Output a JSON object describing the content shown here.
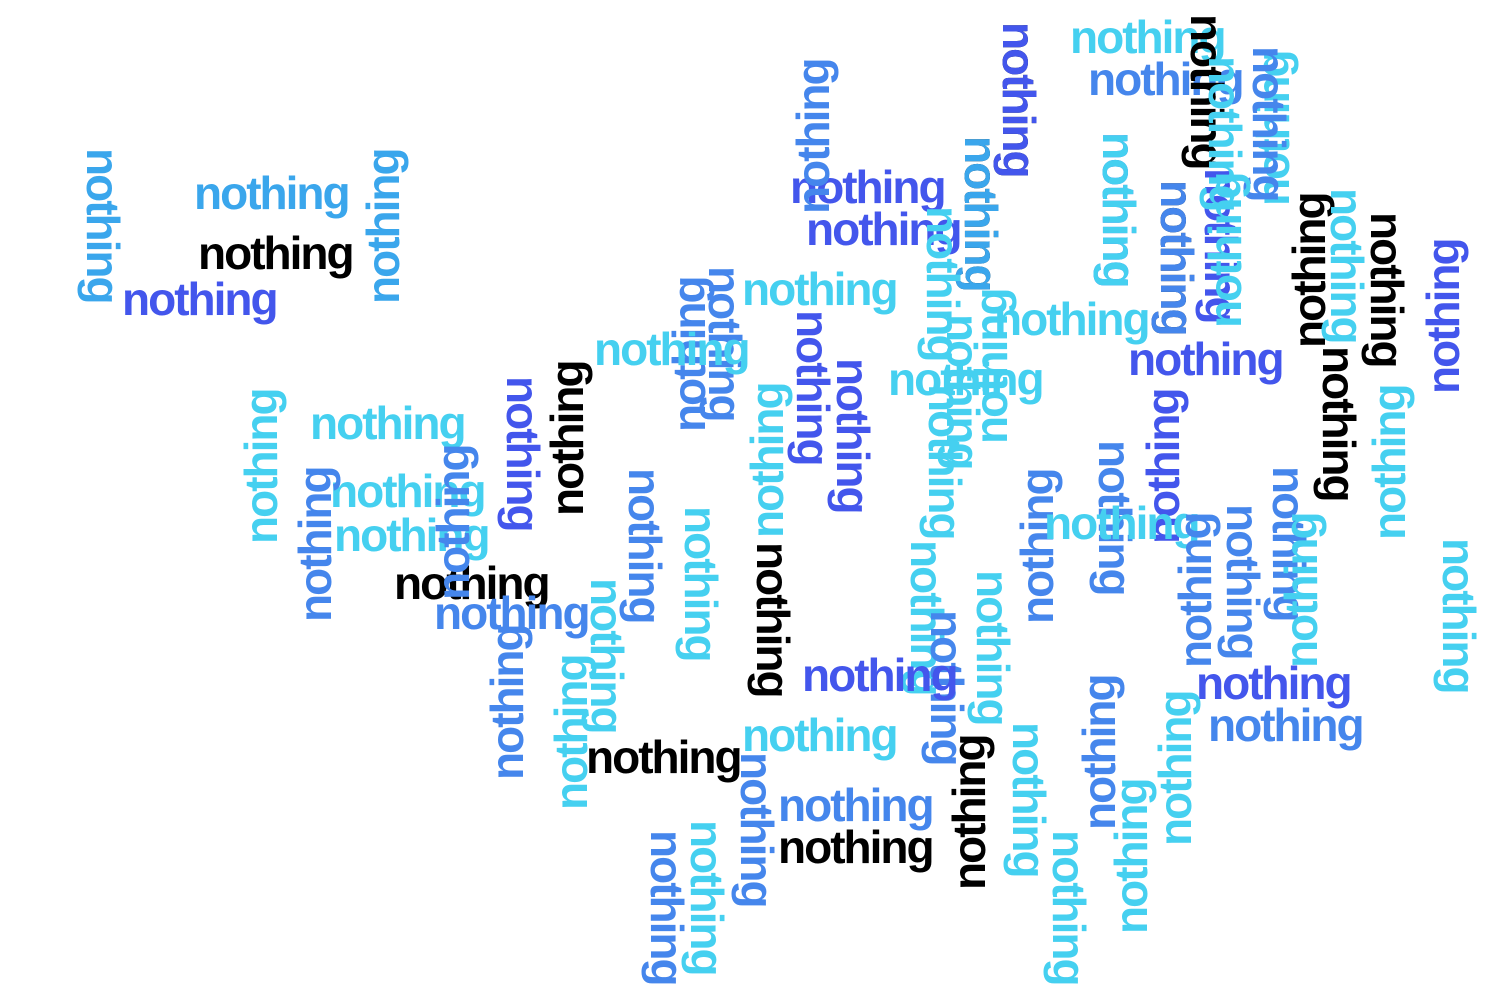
{
  "word_cloud": {
    "words": [
      {
        "text": "nothing",
        "color": "sky",
        "orientation": "horizontal"
      },
      {
        "text": "nothing",
        "color": "blue",
        "orientation": "horizontal"
      },
      {
        "text": "nothing",
        "color": "black",
        "orientation": "rotated-cw"
      },
      {
        "text": "nothing",
        "color": "black",
        "orientation": "rotated-cw"
      },
      {
        "text": "nothing",
        "color": "sky",
        "orientation": "rotated-ccw"
      },
      {
        "text": "nothing",
        "color": "indigo",
        "orientation": "horizontal"
      },
      {
        "text": "nothing",
        "color": "indigo",
        "orientation": "horizontal"
      },
      {
        "text": "nothing",
        "color": "indigo",
        "orientation": "rotated-cw"
      },
      {
        "text": "nothing",
        "color": "black",
        "orientation": "rotated-cw"
      },
      {
        "text": "nothing",
        "color": "indigo",
        "orientation": "rotated-cw"
      },
      {
        "text": "nothing",
        "color": "black",
        "orientation": "rotated-ccw"
      },
      {
        "text": "nothing",
        "color": "sky",
        "orientation": "rotated-cw"
      },
      {
        "text": "nothing",
        "color": "black",
        "orientation": "rotated-cw"
      },
      {
        "text": "nothing",
        "color": "indigo",
        "orientation": "rotated-ccw"
      },
      {
        "text": "nothing",
        "color": "azure",
        "orientation": "rotated-cw"
      },
      {
        "text": "nothing",
        "color": "azure",
        "orientation": "horizontal"
      },
      {
        "text": "nothing",
        "color": "azure",
        "orientation": "rotated-ccw"
      },
      {
        "text": "nothing",
        "color": "black",
        "orientation": "horizontal"
      },
      {
        "text": "nothing",
        "color": "indigo",
        "orientation": "horizontal"
      },
      {
        "text": "nothing",
        "color": "sky",
        "orientation": "horizontal"
      },
      {
        "text": "nothing",
        "color": "indigo",
        "orientation": "horizontal"
      },
      {
        "text": "nothing",
        "color": "sky",
        "orientation": "horizontal"
      },
      {
        "text": "nothing",
        "color": "blue",
        "orientation": "rotated-ccw"
      },
      {
        "text": "nothing",
        "color": "blue",
        "orientation": "rotated-cw"
      },
      {
        "text": "nothing",
        "color": "indigo",
        "orientation": "rotated-cw"
      },
      {
        "text": "nothing",
        "color": "sky",
        "orientation": "rotated-cw"
      },
      {
        "text": "nothing",
        "color": "sky",
        "orientation": "rotated-ccw"
      },
      {
        "text": "nothing",
        "color": "indigo",
        "orientation": "rotated-cw"
      },
      {
        "text": "nothing",
        "color": "sky",
        "orientation": "horizontal"
      },
      {
        "text": "nothing",
        "color": "sky",
        "orientation": "rotated-cw"
      },
      {
        "text": "nothing",
        "color": "sky",
        "orientation": "rotated-ccw"
      },
      {
        "text": "nothing",
        "color": "indigo",
        "orientation": "rotated-ccw"
      },
      {
        "text": "nothing",
        "color": "black",
        "orientation": "rotated-cw"
      },
      {
        "text": "nothing",
        "color": "sky",
        "orientation": "rotated-ccw"
      },
      {
        "text": "nothing",
        "color": "sky",
        "orientation": "horizontal"
      },
      {
        "text": "nothing",
        "color": "sky",
        "orientation": "horizontal"
      },
      {
        "text": "nothing",
        "color": "sky",
        "orientation": "rotated-ccw"
      },
      {
        "text": "nothing",
        "color": "blue",
        "orientation": "rotated-ccw"
      },
      {
        "text": "nothing",
        "color": "black",
        "orientation": "rotated-ccw"
      },
      {
        "text": "nothing",
        "color": "indigo",
        "orientation": "rotated-cw"
      },
      {
        "text": "nothing",
        "color": "sky",
        "orientation": "horizontal"
      },
      {
        "text": "nothing",
        "color": "blue",
        "orientation": "rotated-cw"
      },
      {
        "text": "nothing",
        "color": "sky",
        "orientation": "rotated-cw"
      },
      {
        "text": "nothing",
        "color": "black",
        "orientation": "rotated-cw"
      },
      {
        "text": "nothing",
        "color": "sky",
        "orientation": "rotated-cw"
      },
      {
        "text": "nothing",
        "color": "blue",
        "orientation": "rotated-cw"
      },
      {
        "text": "nothing",
        "color": "blue",
        "orientation": "rotated-ccw"
      },
      {
        "text": "nothing",
        "color": "sky",
        "orientation": "horizontal"
      },
      {
        "text": "nothing",
        "color": "blue",
        "orientation": "rotated-ccw"
      },
      {
        "text": "nothing",
        "color": "blue",
        "orientation": "rotated-cw"
      },
      {
        "text": "nothing",
        "color": "blue",
        "orientation": "rotated-cw"
      },
      {
        "text": "nothing",
        "color": "sky",
        "orientation": "rotated-cw"
      },
      {
        "text": "nothing",
        "color": "sky",
        "orientation": "rotated-cw"
      },
      {
        "text": "nothing",
        "color": "sky",
        "orientation": "rotated-ccw"
      },
      {
        "text": "nothing",
        "color": "blue",
        "orientation": "rotated-cw"
      },
      {
        "text": "nothing",
        "color": "indigo",
        "orientation": "horizontal"
      },
      {
        "text": "nothing",
        "color": "indigo",
        "orientation": "horizontal"
      },
      {
        "text": "nothing",
        "color": "blue",
        "orientation": "horizontal"
      },
      {
        "text": "nothing",
        "color": "black",
        "orientation": "horizontal"
      },
      {
        "text": "nothing",
        "color": "sky",
        "orientation": "horizontal"
      },
      {
        "text": "nothing",
        "color": "blue",
        "orientation": "horizontal"
      },
      {
        "text": "nothing",
        "color": "black",
        "orientation": "horizontal"
      },
      {
        "text": "nothing",
        "color": "sky",
        "orientation": "horizontal"
      },
      {
        "text": "nothing",
        "color": "black",
        "orientation": "horizontal"
      },
      {
        "text": "nothing",
        "color": "blue",
        "orientation": "horizontal"
      },
      {
        "text": "nothing",
        "color": "blue",
        "orientation": "rotated-ccw"
      },
      {
        "text": "nothing",
        "color": "sky",
        "orientation": "rotated-ccw"
      },
      {
        "text": "nothing",
        "color": "sky",
        "orientation": "rotated-cw"
      },
      {
        "text": "nothing",
        "color": "sky",
        "orientation": "rotated-ccw"
      },
      {
        "text": "nothing",
        "color": "blue",
        "orientation": "rotated-ccw"
      },
      {
        "text": "nothing",
        "color": "sky",
        "orientation": "rotated-ccw"
      },
      {
        "text": "nothing",
        "color": "sky",
        "orientation": "rotated-cw"
      },
      {
        "text": "nothing",
        "color": "black",
        "orientation": "rotated-ccw"
      },
      {
        "text": "nothing",
        "color": "sky",
        "orientation": "rotated-cw"
      },
      {
        "text": "nothing",
        "color": "blue",
        "orientation": "rotated-cw"
      },
      {
        "text": "nothing",
        "color": "sky",
        "orientation": "rotated-cw"
      },
      {
        "text": "nothing",
        "color": "blue",
        "orientation": "rotated-cw"
      },
      {
        "text": "nothing",
        "color": "blue",
        "orientation": "rotated-ccw"
      },
      {
        "text": "nothing",
        "color": "black",
        "orientation": "rotated-cw"
      },
      {
        "text": "nothing",
        "color": "sky",
        "orientation": "rotated-cw"
      },
      {
        "text": "nothing",
        "color": "indigo",
        "orientation": "rotated-cw"
      },
      {
        "text": "nothing",
        "color": "azure",
        "orientation": "rotated-cw"
      },
      {
        "text": "nothing",
        "color": "blue",
        "orientation": "rotated-cw"
      },
      {
        "text": "nothing",
        "color": "blue",
        "orientation": "rotated-ccw"
      },
      {
        "text": "nothing",
        "color": "sky",
        "orientation": "rotated-cw"
      },
      {
        "text": "nothing",
        "color": "sky",
        "orientation": "rotated-cw"
      },
      {
        "text": "nothing",
        "color": "blue",
        "orientation": "rotated-cw"
      },
      {
        "text": "nothing",
        "color": "sky",
        "orientation": "rotated-ccw"
      }
    ]
  },
  "colors": {
    "black": "#000000",
    "sky": "#45d0f0",
    "azure": "#3aa6ec",
    "blue": "#4586ec",
    "indigo": "#4356ec"
  }
}
